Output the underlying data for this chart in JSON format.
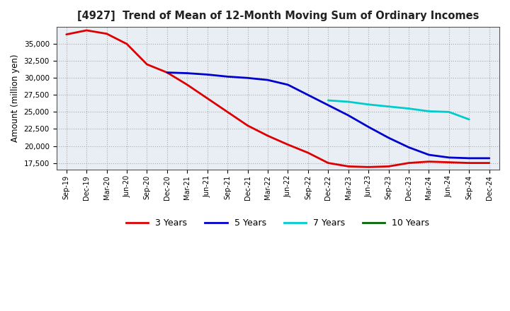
{
  "title": "[4927]  Trend of Mean of 12-Month Moving Sum of Ordinary Incomes",
  "ylabel": "Amount (million yen)",
  "background_color": "#ffffff",
  "plot_bg_color": "#e8eef4",
  "grid_color": "#aaaaaa",
  "ylim": [
    16500,
    37500
  ],
  "yticks": [
    17500,
    20000,
    22500,
    25000,
    27500,
    30000,
    32500,
    35000
  ],
  "x_labels": [
    "Sep-19",
    "Dec-19",
    "Mar-20",
    "Jun-20",
    "Sep-20",
    "Dec-20",
    "Mar-21",
    "Jun-21",
    "Sep-21",
    "Dec-21",
    "Mar-22",
    "Jun-22",
    "Sep-22",
    "Dec-22",
    "Mar-23",
    "Jun-23",
    "Sep-23",
    "Dec-23",
    "Mar-24",
    "Jun-24",
    "Sep-24",
    "Dec-24"
  ],
  "series_names": [
    "3 Years",
    "5 Years",
    "7 Years",
    "10 Years"
  ],
  "series_colors": [
    "#dd0000",
    "#0000cc",
    "#00cccc",
    "#006600"
  ],
  "series_x": [
    [
      0,
      1,
      2,
      3,
      4,
      5,
      6,
      7,
      8,
      9,
      10,
      11,
      12,
      13,
      14,
      15,
      16,
      17,
      18,
      19,
      20,
      21
    ],
    [
      5,
      6,
      7,
      8,
      9,
      10,
      11,
      12,
      13,
      14,
      15,
      16,
      17,
      18,
      19,
      20,
      21
    ],
    [
      13,
      14,
      15,
      16,
      17,
      18,
      19,
      20
    ],
    []
  ],
  "series_y": [
    [
      36400,
      37000,
      36500,
      35000,
      32000,
      30800,
      29000,
      27000,
      25000,
      23000,
      21500,
      20200,
      19000,
      17500,
      17000,
      16900,
      17000,
      17500,
      17700,
      17600,
      17500,
      17500
    ],
    [
      30800,
      30700,
      30500,
      30200,
      30000,
      29700,
      29000,
      27500,
      26000,
      24500,
      22800,
      21200,
      19800,
      18700,
      18300,
      18200,
      18200
    ],
    [
      26700,
      26500,
      26100,
      25800,
      25500,
      25100,
      25000,
      23900
    ],
    []
  ]
}
